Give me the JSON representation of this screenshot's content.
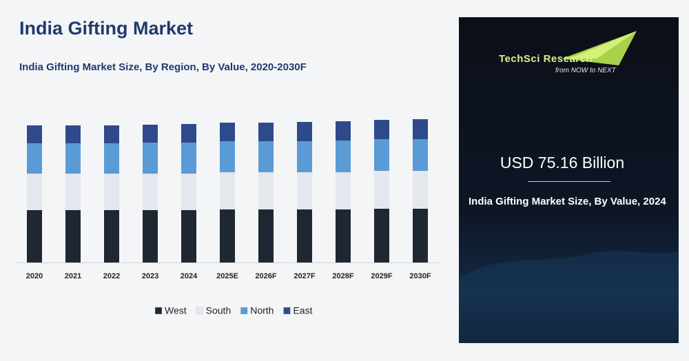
{
  "chart_data": {
    "type": "stacked-bar",
    "title": "India Gifting Market",
    "subtitle": "India Gifting Market  Size, By Region, By Value, 2020-2030F",
    "categories": [
      "2020",
      "2021",
      "2022",
      "2023",
      "2024",
      "2025E",
      "2026F",
      "2027F",
      "2028F",
      "2029F",
      "2030F"
    ],
    "series": [
      {
        "name": "West",
        "color": "#1f2733",
        "values": [
          76,
          76,
          76,
          76,
          76,
          77,
          77,
          77,
          77,
          78,
          78
        ]
      },
      {
        "name": "South",
        "color": "#e4e7ee",
        "values": [
          53,
          53,
          53,
          53,
          53,
          54,
          54,
          54,
          54,
          55,
          55
        ]
      },
      {
        "name": "North",
        "color": "#5b9bd5",
        "values": [
          44,
          44,
          44,
          45,
          45,
          45,
          45,
          45,
          46,
          46,
          46
        ]
      },
      {
        "name": "East",
        "color": "#2e4a8a",
        "values": [
          26,
          26,
          26,
          26,
          27,
          27,
          27,
          28,
          28,
          28,
          29
        ]
      }
    ]
  },
  "panel": {
    "logo": "TechSci Research",
    "tagline": "from NOW to NEXT",
    "headline": "USD 75.16 Billion",
    "description": "India Gifting Market  Size, By Value, 2024"
  }
}
